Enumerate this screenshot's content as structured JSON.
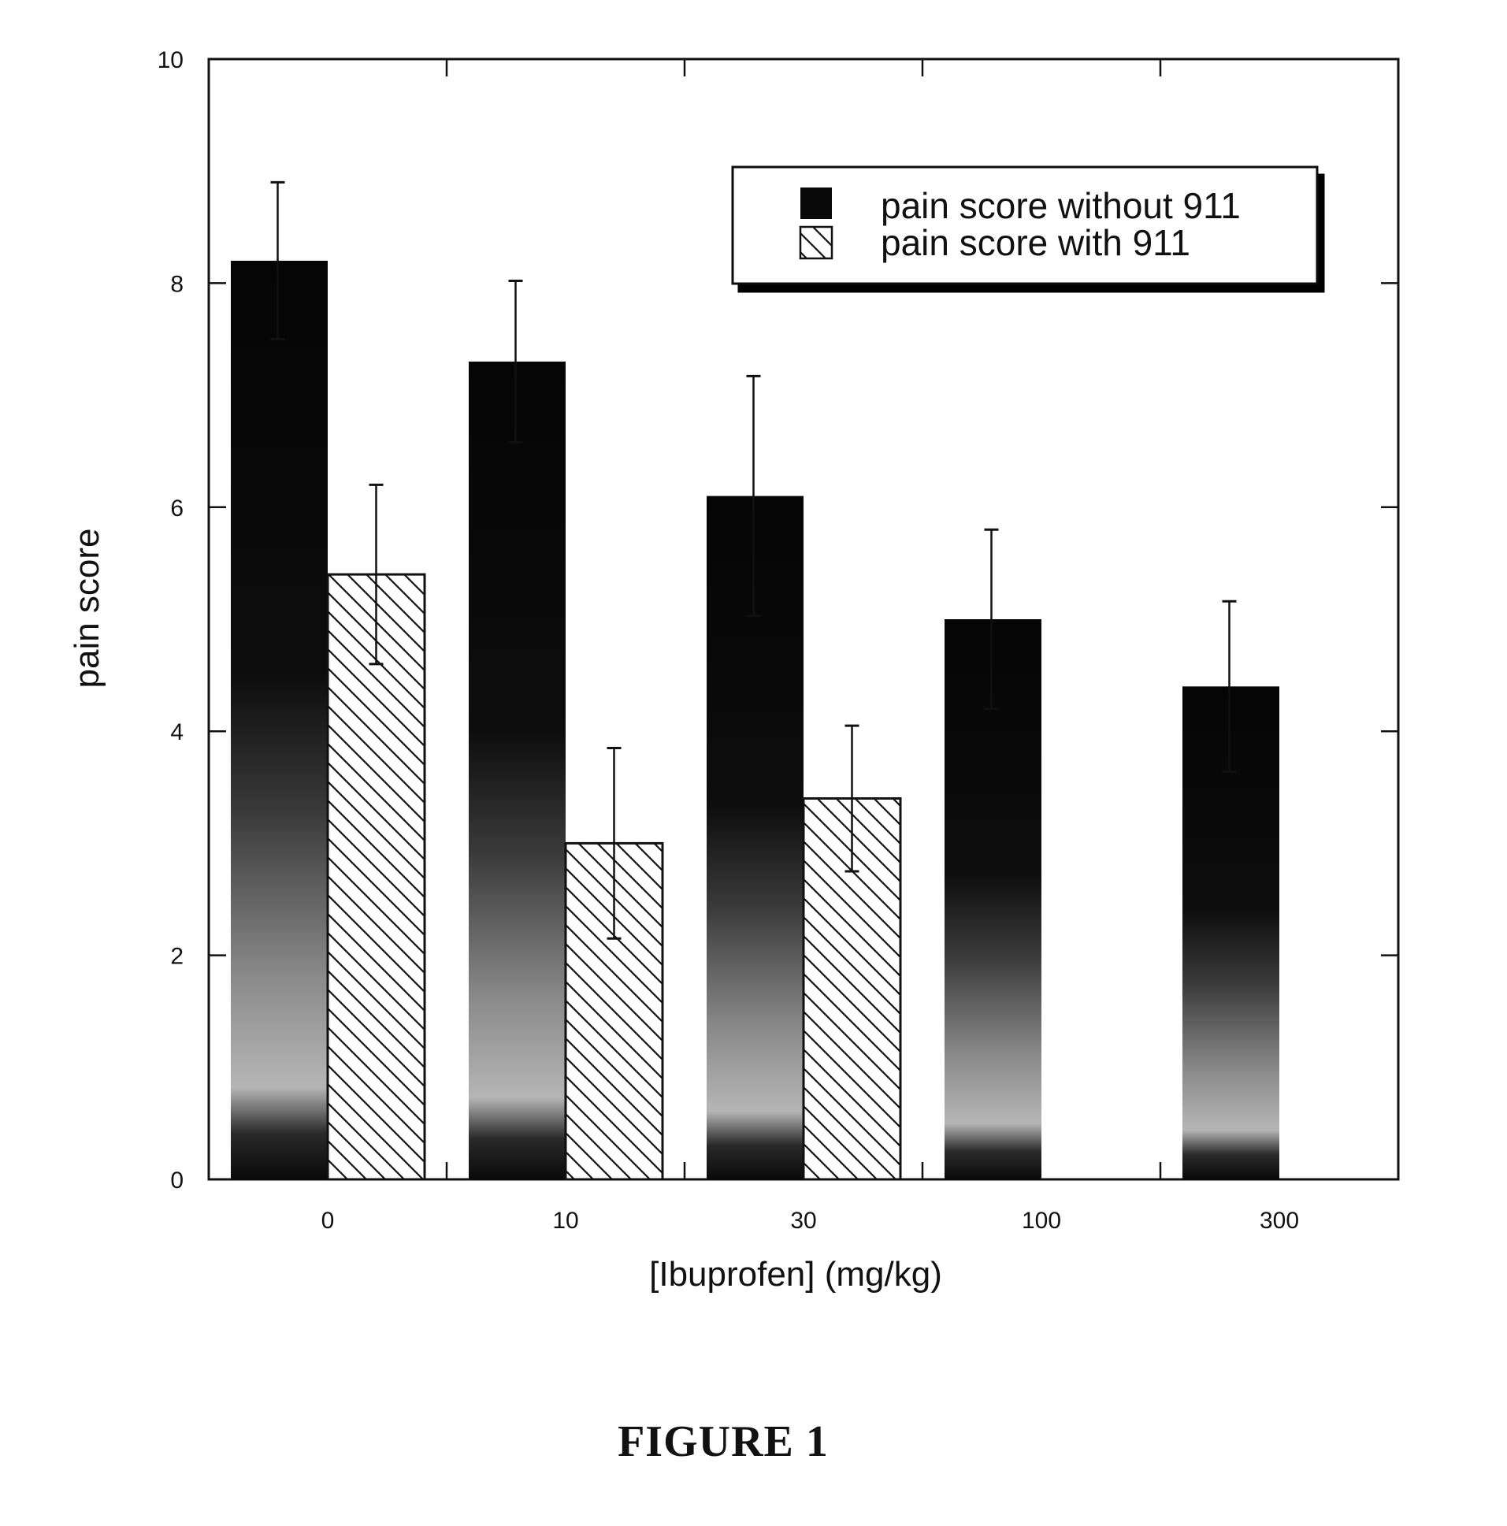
{
  "chart_data": {
    "type": "bar",
    "categories": [
      "0",
      "10",
      "30",
      "100",
      "300"
    ],
    "series": [
      {
        "name": "pain score without 911",
        "values": [
          8.2,
          7.3,
          6.1,
          5.0,
          4.4
        ],
        "errors": [
          0.7,
          0.72,
          1.07,
          0.8,
          0.76
        ]
      },
      {
        "name": "pain score with 911",
        "values": [
          5.4,
          3.0,
          3.4,
          null,
          null
        ],
        "errors": [
          0.8,
          0.85,
          0.65,
          null,
          null
        ]
      }
    ],
    "xlabel": "[Ibuprofen] (mg/kg)",
    "ylabel": "pain score",
    "ylim": [
      0,
      10
    ],
    "yticks": [
      "0",
      "2",
      "4",
      "6",
      "8",
      "10"
    ],
    "legend_position": "top-right",
    "grid": false
  },
  "caption": "FIGURE 1",
  "colors": {
    "bar_solid": "#0a0a0a",
    "bar_hatched_stroke": "#111111",
    "frame": "#111111"
  }
}
